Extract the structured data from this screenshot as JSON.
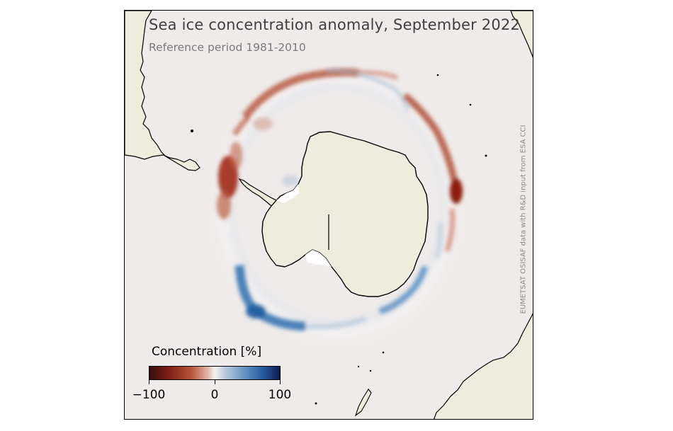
{
  "map": {
    "title": "Sea ice concentration anomaly, September 2022",
    "subtitle": "Reference period 1981-2010",
    "credit": "EUMETSAT OSISAF data with R&D input from ESA CCI",
    "colors": {
      "ocean": "#efebea",
      "land": "#eeecdc",
      "coast": "#000000",
      "negative": "#a0321c",
      "positive": "#2f6fae"
    }
  },
  "colorbar": {
    "title": "Concentration [%]",
    "ticks": [
      "−100",
      "0",
      "100"
    ],
    "min": -100,
    "max": 100
  }
}
